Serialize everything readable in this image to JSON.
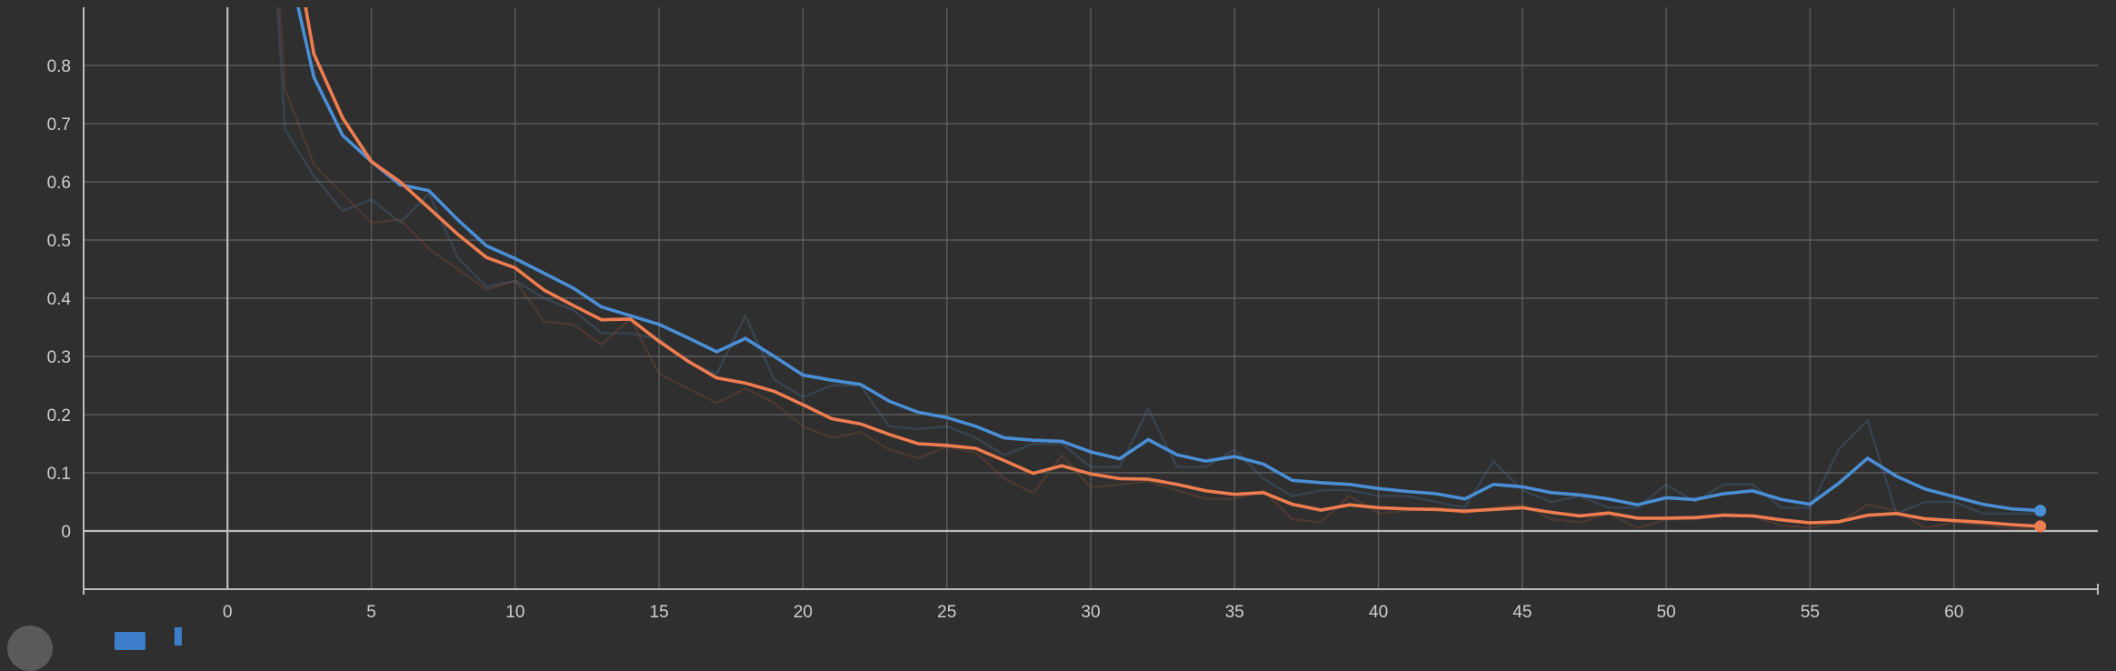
{
  "chart_data": {
    "type": "line",
    "title": "",
    "xlabel": "",
    "ylabel": "",
    "xlim": [
      -5,
      65
    ],
    "ylim": [
      -0.1,
      0.9
    ],
    "x_ticks": [
      0,
      5,
      10,
      15,
      20,
      25,
      30,
      35,
      40,
      45,
      50,
      55,
      60
    ],
    "y_ticks": [
      0,
      0.1,
      0.2,
      0.3,
      0.4,
      0.5,
      0.6,
      0.7,
      0.8
    ],
    "grid": true,
    "series": [
      {
        "color": "#4a8fd6",
        "raw_color": "#4a6f96",
        "x": [
          1,
          2,
          3,
          4,
          5,
          6,
          7,
          8,
          9,
          10,
          11,
          12,
          13,
          14,
          15,
          16,
          17,
          18,
          19,
          20,
          21,
          22,
          23,
          24,
          25,
          26,
          27,
          28,
          29,
          30,
          31,
          32,
          33,
          34,
          35,
          36,
          37,
          38,
          39,
          40,
          41,
          42,
          43,
          44,
          45,
          46,
          47,
          48,
          49,
          50,
          51,
          52,
          53,
          54,
          55,
          56,
          57,
          58,
          59,
          60,
          61,
          62,
          63
        ],
        "values": [
          1.5,
          0.69,
          0.61,
          0.55,
          0.57,
          0.53,
          0.58,
          0.47,
          0.42,
          0.43,
          0.4,
          0.38,
          0.34,
          0.34,
          0.33,
          0.29,
          0.27,
          0.37,
          0.26,
          0.23,
          0.25,
          0.25,
          0.18,
          0.175,
          0.18,
          0.16,
          0.13,
          0.15,
          0.15,
          0.11,
          0.11,
          0.21,
          0.11,
          0.11,
          0.14,
          0.09,
          0.06,
          0.07,
          0.07,
          0.06,
          0.06,
          0.05,
          0.04,
          0.12,
          0.07,
          0.05,
          0.06,
          0.04,
          0.04,
          0.08,
          0.05,
          0.08,
          0.08,
          0.04,
          0.04,
          0.14,
          0.19,
          0.03,
          0.05,
          0.05,
          0.03,
          0.03,
          0.03
        ],
        "smoothed": [
          1.5,
          1.0,
          0.78,
          0.68,
          0.635,
          0.595,
          0.585,
          0.535,
          0.49,
          0.468,
          0.443,
          0.418,
          0.385,
          0.37,
          0.355,
          0.332,
          0.308,
          0.331,
          0.3,
          0.268,
          0.259,
          0.252,
          0.223,
          0.204,
          0.195,
          0.18,
          0.16,
          0.156,
          0.154,
          0.136,
          0.124,
          0.157,
          0.131,
          0.12,
          0.128,
          0.115,
          0.087,
          0.083,
          0.08,
          0.073,
          0.068,
          0.064,
          0.055,
          0.08,
          0.076,
          0.066,
          0.062,
          0.055,
          0.045,
          0.057,
          0.054,
          0.064,
          0.069,
          0.054,
          0.046,
          0.082,
          0.125,
          0.094,
          0.072,
          0.059,
          0.046,
          0.038,
          0.035
        ]
      },
      {
        "color": "#f07d4f",
        "raw_color": "#8a4e36",
        "x": [
          1,
          2,
          3,
          4,
          5,
          6,
          7,
          8,
          9,
          10,
          11,
          12,
          13,
          14,
          15,
          16,
          17,
          18,
          19,
          20,
          21,
          22,
          23,
          24,
          25,
          26,
          27,
          28,
          29,
          30,
          31,
          32,
          33,
          34,
          35,
          36,
          37,
          38,
          39,
          40,
          41,
          42,
          43,
          44,
          45,
          46,
          47,
          48,
          49,
          50,
          51,
          52,
          53,
          54,
          55,
          56,
          57,
          58,
          59,
          60,
          61,
          62,
          63
        ],
        "values": [
          1.5,
          0.76,
          0.63,
          0.58,
          0.53,
          0.535,
          0.485,
          0.45,
          0.415,
          0.43,
          0.36,
          0.355,
          0.32,
          0.365,
          0.27,
          0.245,
          0.22,
          0.245,
          0.22,
          0.18,
          0.16,
          0.17,
          0.14,
          0.125,
          0.145,
          0.135,
          0.09,
          0.065,
          0.13,
          0.075,
          0.08,
          0.085,
          0.07,
          0.055,
          0.055,
          0.07,
          0.02,
          0.015,
          0.06,
          0.03,
          0.035,
          0.04,
          0.03,
          0.04,
          0.045,
          0.02,
          0.015,
          0.03,
          0.005,
          0.02,
          0.02,
          0.03,
          0.025,
          0.01,
          0.005,
          0.015,
          0.045,
          0.035,
          0.005,
          0.015,
          0.01,
          0.005,
          0.003
        ],
        "smoothed": [
          1.5,
          1.1,
          0.82,
          0.71,
          0.635,
          0.6,
          0.555,
          0.51,
          0.47,
          0.452,
          0.414,
          0.388,
          0.363,
          0.364,
          0.326,
          0.292,
          0.263,
          0.254,
          0.24,
          0.217,
          0.193,
          0.184,
          0.166,
          0.15,
          0.147,
          0.142,
          0.121,
          0.099,
          0.112,
          0.098,
          0.09,
          0.089,
          0.08,
          0.069,
          0.063,
          0.066,
          0.046,
          0.036,
          0.045,
          0.04,
          0.038,
          0.037,
          0.034,
          0.037,
          0.04,
          0.032,
          0.026,
          0.031,
          0.022,
          0.022,
          0.023,
          0.027,
          0.026,
          0.019,
          0.014,
          0.016,
          0.027,
          0.03,
          0.021,
          0.018,
          0.015,
          0.011,
          0.008
        ]
      }
    ]
  },
  "controls": {
    "icons": [
      "circle-button-icon",
      "square-button-icon",
      "bar-button-icon"
    ]
  }
}
